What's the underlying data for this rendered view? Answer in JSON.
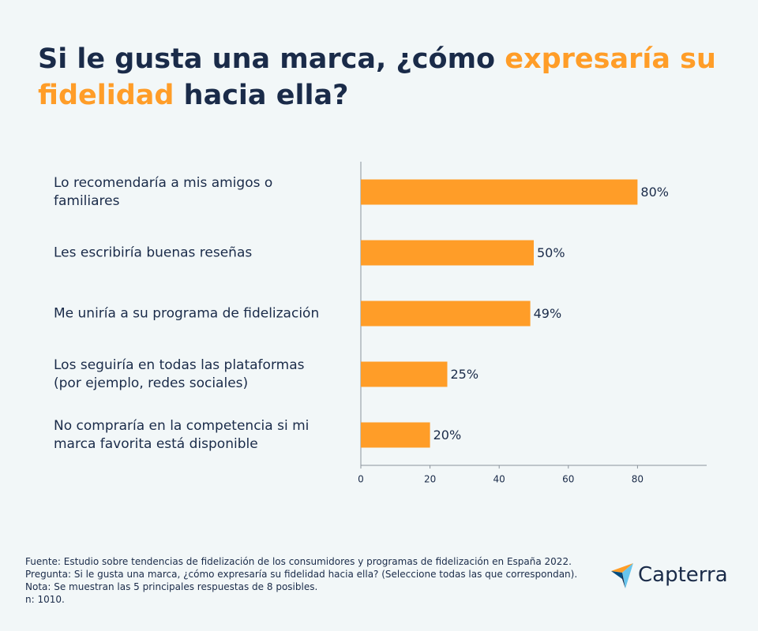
{
  "chart_data": {
    "type": "bar",
    "title_parts": [
      "Si le gusta una marca, ¿cómo ",
      "expresaría su fidelidad",
      " hacia ella?"
    ],
    "categories": [
      "Lo recomendaría a mis amigos o familiares",
      "Les escribiría buenas reseñas",
      "Me uniría a su programa de fidelización",
      "Los seguiría en todas las plataformas (por ejemplo, redes sociales)",
      "No compraría en la competencia si mi marca favorita está disponible"
    ],
    "values": [
      80,
      50,
      49,
      25,
      20
    ],
    "value_labels": [
      "80%",
      "50%",
      "49%",
      "25%",
      "20%"
    ],
    "color": "#ff9d28",
    "orientation": "horizontal",
    "xlim": [
      0,
      100
    ],
    "xticks": [
      0,
      20,
      40,
      60,
      80
    ],
    "notes": [
      "Fuente: Estudio sobre tendencias de fidelización de los consumidores y programas de fidelización en España 2022.",
      "Pregunta: Si le gusta una marca, ¿cómo expresaría su fidelidad hacia ella? (Seleccione todas las que correspondan).",
      "Nota: Se muestran las 5 principales respuestas de 8 posibles.",
      "n: 1010."
    ],
    "logo": "Capterra"
  }
}
